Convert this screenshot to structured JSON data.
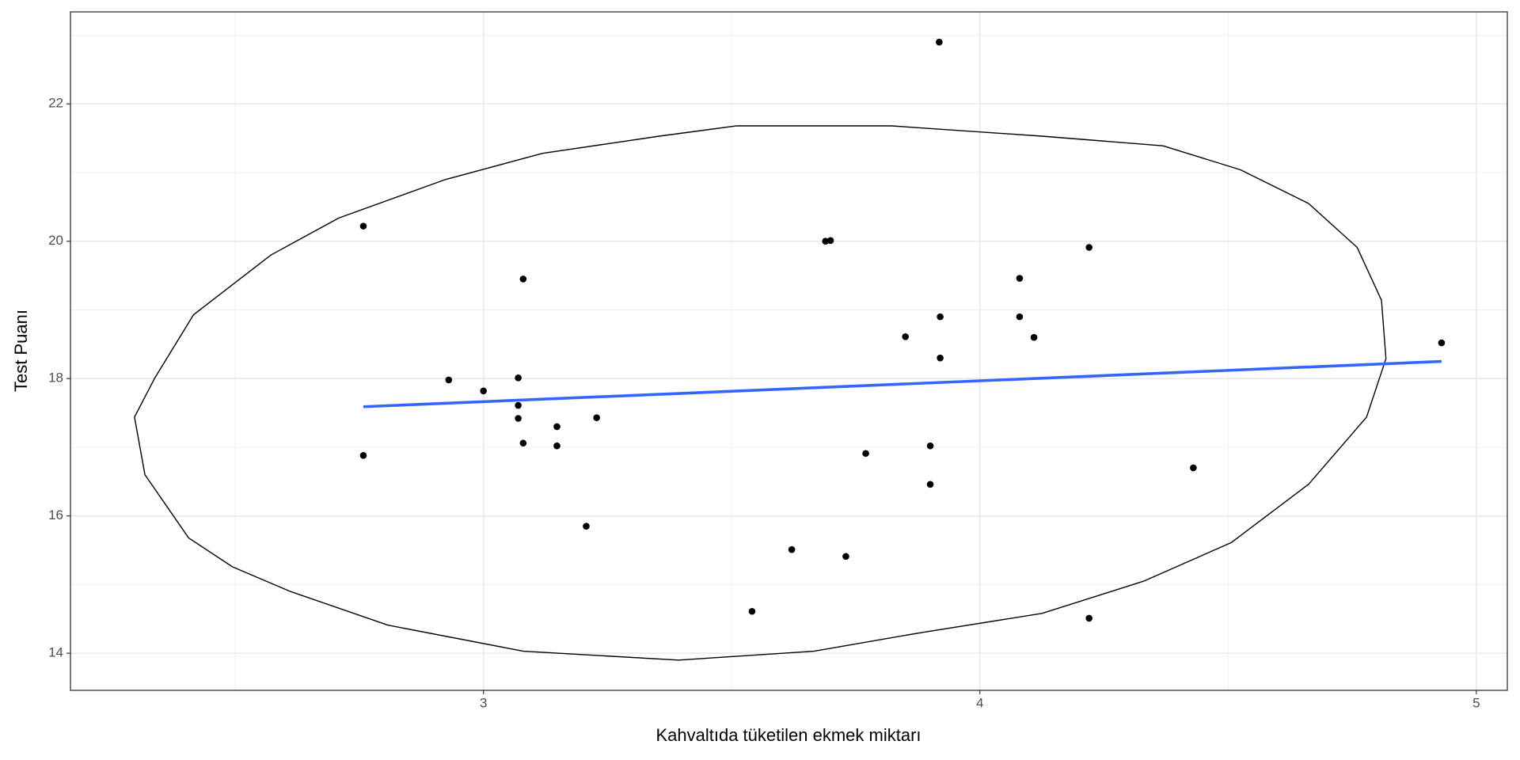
{
  "chart_data": {
    "type": "scatter",
    "x_label": "Kahvaltıda tüketilen ekmek miktarı",
    "y_label": "Test Puanı",
    "x": [
      2.758,
      2.758,
      2.93,
      3.0,
      3.07,
      3.07,
      3.07,
      3.08,
      3.08,
      3.148,
      3.148,
      3.207,
      3.228,
      3.541,
      3.621,
      3.689,
      3.699,
      3.73,
      3.77,
      3.85,
      3.9,
      3.9,
      3.918,
      3.92,
      3.92,
      4.08,
      4.08,
      4.109,
      4.22,
      4.22,
      4.43,
      4.93
    ],
    "values": [
      20.22,
      16.88,
      17.98,
      17.82,
      18.01,
      17.61,
      17.42,
      19.45,
      17.06,
      17.3,
      17.02,
      15.85,
      17.43,
      14.61,
      15.51,
      20.0,
      20.01,
      15.41,
      16.91,
      18.61,
      17.02,
      16.46,
      22.9,
      18.9,
      18.3,
      19.46,
      18.9,
      18.6,
      19.91,
      14.51,
      16.7,
      18.52
    ],
    "color": "#000000",
    "fit": {
      "x": [
        2.758,
        4.93
      ],
      "values": [
        17.59,
        18.25
      ],
      "color": "#3366ff"
    },
    "ellipse": {
      "x": [
        2.297,
        2.318,
        2.406,
        2.494,
        2.611,
        2.807,
        3.08,
        3.393,
        3.666,
        3.881,
        4.125,
        4.33,
        4.506,
        4.662,
        4.779,
        4.818,
        4.809,
        4.76,
        4.662,
        4.525,
        4.369,
        4.125,
        3.822,
        3.51,
        3.354,
        3.119,
        2.924,
        2.709,
        2.572,
        2.416,
        2.338
      ],
      "values": [
        17.44,
        16.6,
        15.68,
        15.26,
        14.9,
        14.41,
        14.03,
        13.9,
        14.03,
        14.3,
        14.58,
        15.05,
        15.61,
        16.46,
        17.44,
        18.29,
        19.14,
        19.91,
        20.55,
        21.04,
        21.39,
        21.53,
        21.68,
        21.68,
        21.53,
        21.28,
        20.9,
        20.34,
        19.8,
        18.93,
        18.01
      ],
      "color": "#000000"
    },
    "xlim": [
      2.168,
      5.0625
    ],
    "ylim": [
      13.46,
      23.34
    ],
    "xticks": [
      3,
      4,
      5
    ],
    "yticks": [
      14,
      16,
      18,
      20,
      22
    ],
    "grid": true
  }
}
